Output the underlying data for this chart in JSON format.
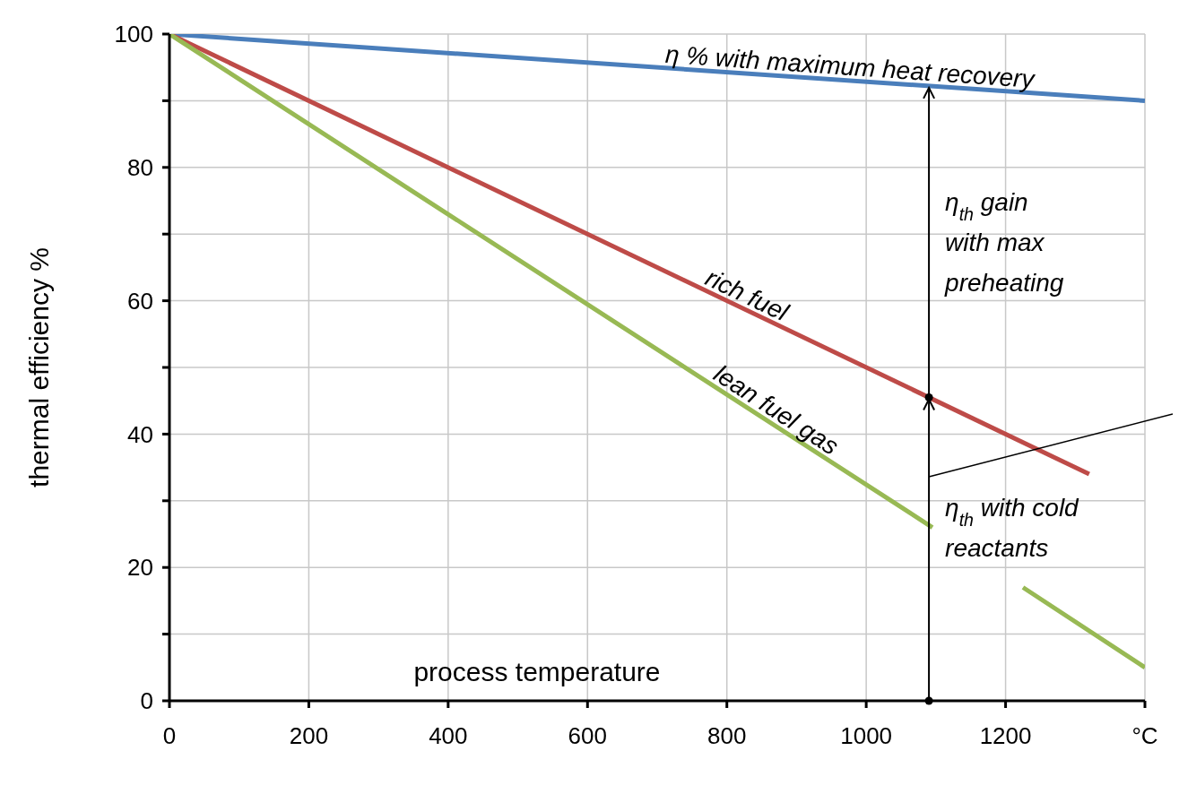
{
  "chart_data": {
    "type": "line",
    "xlabel": "process temperature",
    "ylabel": "thermal efficiency %",
    "xlim": [
      0,
      1400
    ],
    "ylim": [
      0,
      100
    ],
    "xticks": [
      0,
      200,
      400,
      600,
      800,
      1000,
      1200,
      {
        "value": 1400,
        "label": "°C"
      }
    ],
    "yticks": [
      0,
      {
        "value": 10,
        "label": null
      },
      20,
      {
        "value": 30,
        "label": null
      },
      40,
      {
        "value": 50,
        "label": null
      },
      60,
      {
        "value": 70,
        "label": null
      },
      80,
      {
        "value": 90,
        "label": null
      },
      100
    ],
    "grid": true,
    "marker": "none",
    "series": [
      {
        "name": "η % with maximum heat recovery",
        "color": "#4a7ebb",
        "x": [
          0,
          1400
        ],
        "values": [
          100,
          90
        ]
      },
      {
        "name": "rich fuel",
        "color": "#be4b48",
        "x": [
          0,
          1320
        ],
        "values": [
          100,
          34
        ]
      },
      {
        "name": "lean fuel gas",
        "color": "#98b954",
        "x": [
          0,
          1095,
          1160,
          1225,
          1400
        ],
        "values": [
          100,
          26,
          null,
          17,
          5
        ]
      }
    ],
    "annotations": [
      {
        "text": "η$_{th}$  with cold reactants",
        "x": 1090,
        "y": 26
      },
      "η$_{th}$ gain with max preheating"
    ]
  }
}
